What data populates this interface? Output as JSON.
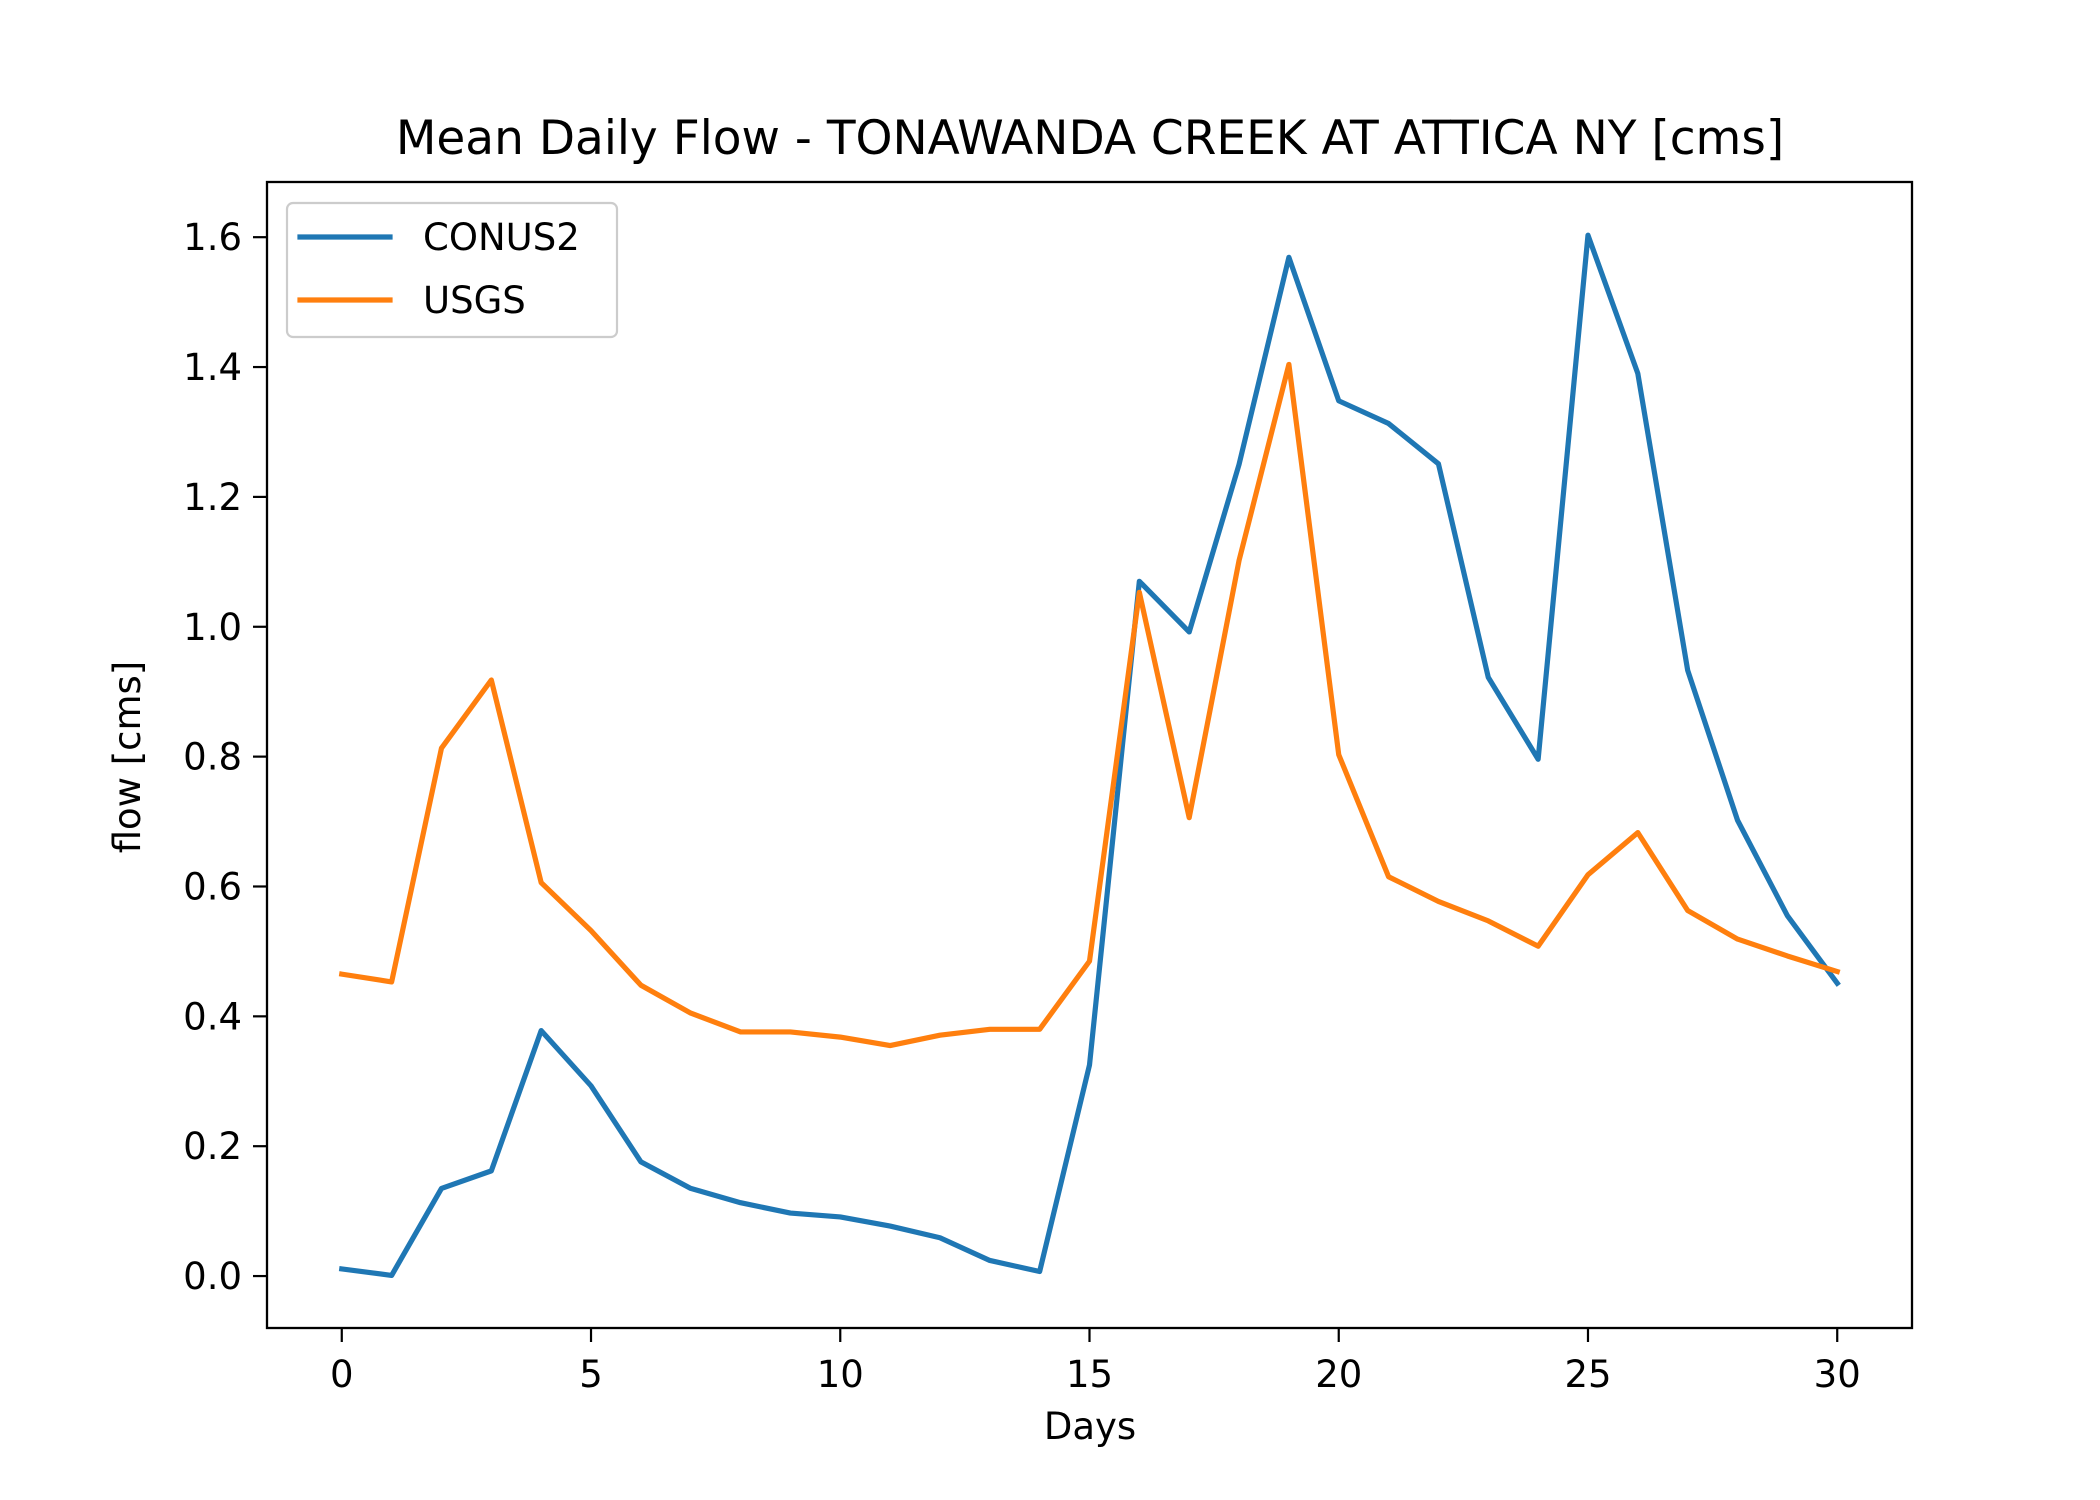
{
  "chart_data": {
    "type": "line",
    "title": "Mean Daily Flow - TONAWANDA CREEK AT ATTICA NY [cms]",
    "xlabel": "Days",
    "ylabel": "flow [cms]",
    "xlim": [
      -1.5,
      31.5
    ],
    "ylim": [
      -0.08,
      1.685
    ],
    "xticks": [
      0,
      5,
      10,
      15,
      20,
      25,
      30
    ],
    "xtick_labels": [
      "0",
      "5",
      "10",
      "15",
      "20",
      "25",
      "30"
    ],
    "yticks": [
      0.0,
      0.2,
      0.4,
      0.6,
      0.8,
      1.0,
      1.2,
      1.4,
      1.6
    ],
    "ytick_labels": [
      "0.0",
      "0.2",
      "0.4",
      "0.6",
      "0.8",
      "1.0",
      "1.2",
      "1.4",
      "1.6"
    ],
    "grid": false,
    "legend_position": "top-left",
    "x": [
      0,
      1,
      2,
      3,
      4,
      5,
      6,
      7,
      8,
      9,
      10,
      11,
      12,
      13,
      14,
      15,
      16,
      17,
      18,
      19,
      20,
      21,
      22,
      23,
      24,
      25,
      26,
      27,
      28,
      29,
      30
    ],
    "series": [
      {
        "name": "CONUS2",
        "color": "#1f77b4",
        "values": [
          0.011,
          0.001,
          0.135,
          0.162,
          0.378,
          0.293,
          0.176,
          0.135,
          0.113,
          0.097,
          0.091,
          0.077,
          0.059,
          0.024,
          0.007,
          0.325,
          1.07,
          0.992,
          1.25,
          1.569,
          1.348,
          1.313,
          1.251,
          0.922,
          0.796,
          1.603,
          1.39,
          0.933,
          0.702,
          0.555,
          0.451
        ]
      },
      {
        "name": "USGS",
        "color": "#ff7f0e",
        "values": [
          0.465,
          0.453,
          0.813,
          0.918,
          0.606,
          0.532,
          0.448,
          0.405,
          0.376,
          0.376,
          0.368,
          0.355,
          0.371,
          0.38,
          0.38,
          0.485,
          1.053,
          0.706,
          1.102,
          1.404,
          0.803,
          0.615,
          0.577,
          0.547,
          0.508,
          0.618,
          0.683,
          0.563,
          0.519,
          0.493,
          0.469
        ]
      }
    ]
  }
}
